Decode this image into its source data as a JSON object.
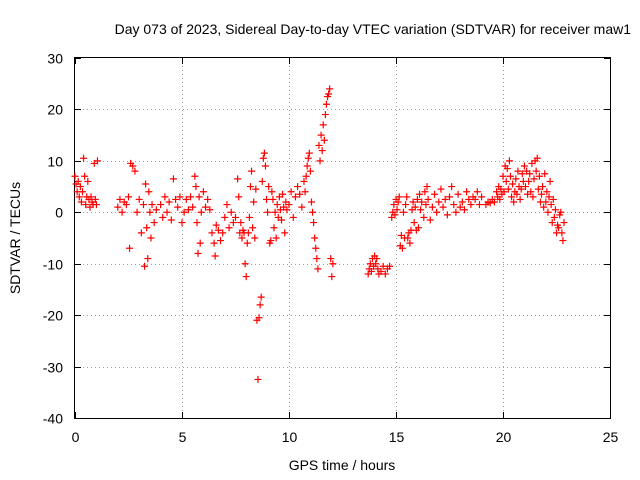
{
  "chart_data": {
    "type": "scatter",
    "title": "Day 073 of 2023, Sidereal Day-to-day VTEC variation (SDTVAR) for receiver maw1",
    "xlabel": "GPS time / hours",
    "ylabel": "SDTVAR / TECUs",
    "xlim": [
      0,
      25
    ],
    "ylim": [
      -40,
      30
    ],
    "x_ticks": [
      0,
      5,
      10,
      15,
      20,
      25
    ],
    "x_tick_labels": [
      "0",
      "5",
      "10",
      "15",
      "20",
      "25"
    ],
    "y_ticks": [
      -40,
      -30,
      -20,
      -10,
      0,
      10,
      20,
      30
    ],
    "y_tick_labels": [
      "-40",
      "-30",
      "-20",
      "-10",
      "0",
      "10",
      "20",
      "30"
    ],
    "grid": true,
    "marker": "+",
    "color": "#ff0000",
    "series": [
      {
        "name": "SDTVAR",
        "points": [
          [
            0.0,
            7
          ],
          [
            0.05,
            5.5
          ],
          [
            0.1,
            4
          ],
          [
            0.15,
            6
          ],
          [
            0.2,
            3
          ],
          [
            0.25,
            5
          ],
          [
            0.3,
            2
          ],
          [
            0.35,
            4
          ],
          [
            0.4,
            10.5
          ],
          [
            0.45,
            7
          ],
          [
            0.5,
            1.5
          ],
          [
            0.55,
            3
          ],
          [
            0.6,
            6
          ],
          [
            0.65,
            2.5
          ],
          [
            0.7,
            1
          ],
          [
            0.75,
            3
          ],
          [
            0.8,
            2
          ],
          [
            0.85,
            1.5
          ],
          [
            0.9,
            9.5
          ],
          [
            0.95,
            2.5
          ],
          [
            1.0,
            1.5
          ],
          [
            1.05,
            10
          ],
          [
            2.0,
            1
          ],
          [
            2.1,
            2.5
          ],
          [
            2.2,
            0
          ],
          [
            2.3,
            2
          ],
          [
            2.4,
            1.5
          ],
          [
            2.5,
            3
          ],
          [
            2.55,
            -7
          ],
          [
            2.6,
            9.5
          ],
          [
            2.7,
            9
          ],
          [
            2.8,
            8
          ],
          [
            2.9,
            0
          ],
          [
            3.0,
            2.5
          ],
          [
            3.1,
            -4
          ],
          [
            3.2,
            1.5
          ],
          [
            3.25,
            -10.5
          ],
          [
            3.3,
            5.5
          ],
          [
            3.35,
            -3
          ],
          [
            3.4,
            -9
          ],
          [
            3.45,
            4
          ],
          [
            3.5,
            0
          ],
          [
            3.55,
            -5
          ],
          [
            3.6,
            1.5
          ],
          [
            3.7,
            -2
          ],
          [
            3.8,
            0.5
          ],
          [
            4.0,
            1.5
          ],
          [
            4.1,
            -1
          ],
          [
            4.2,
            3
          ],
          [
            4.3,
            0
          ],
          [
            4.4,
            2
          ],
          [
            4.5,
            -1.5
          ],
          [
            4.6,
            6.5
          ],
          [
            4.7,
            2.5
          ],
          [
            4.8,
            1
          ],
          [
            4.9,
            3
          ],
          [
            5.0,
            -2
          ],
          [
            5.1,
            0
          ],
          [
            5.2,
            2.5
          ],
          [
            5.3,
            0.5
          ],
          [
            5.4,
            3
          ],
          [
            5.5,
            1
          ],
          [
            5.6,
            7
          ],
          [
            5.65,
            5
          ],
          [
            5.7,
            -2
          ],
          [
            5.75,
            -8
          ],
          [
            5.8,
            3
          ],
          [
            5.85,
            -6
          ],
          [
            5.9,
            0
          ],
          [
            6.0,
            4
          ],
          [
            6.1,
            1
          ],
          [
            6.2,
            2.5
          ],
          [
            6.3,
            0.5
          ],
          [
            6.4,
            -4
          ],
          [
            6.5,
            -6
          ],
          [
            6.55,
            -8.5
          ],
          [
            6.6,
            -2.5
          ],
          [
            6.7,
            -3.5
          ],
          [
            6.8,
            -5.5
          ],
          [
            6.9,
            -4
          ],
          [
            7.0,
            -1
          ],
          [
            7.1,
            1.5
          ],
          [
            7.2,
            -3
          ],
          [
            7.3,
            0
          ],
          [
            7.4,
            -2
          ],
          [
            7.5,
            -1
          ],
          [
            7.6,
            6.5
          ],
          [
            7.65,
            3
          ],
          [
            7.7,
            -4
          ],
          [
            7.75,
            -2
          ],
          [
            7.8,
            -5
          ],
          [
            7.85,
            -3.5
          ],
          [
            7.9,
            -4
          ],
          [
            7.95,
            -10
          ],
          [
            8.0,
            -12.5
          ],
          [
            8.05,
            -6
          ],
          [
            8.1,
            -4
          ],
          [
            8.15,
            -1
          ],
          [
            8.2,
            5
          ],
          [
            8.25,
            8
          ],
          [
            8.3,
            -3
          ],
          [
            8.35,
            2
          ],
          [
            8.4,
            -5
          ],
          [
            8.45,
            4.5
          ],
          [
            8.5,
            -21
          ],
          [
            8.55,
            -32.5
          ],
          [
            8.6,
            -20.5
          ],
          [
            8.65,
            -18
          ],
          [
            8.7,
            -16.5
          ],
          [
            8.75,
            6
          ],
          [
            8.8,
            10.5
          ],
          [
            8.85,
            11.5
          ],
          [
            8.9,
            9
          ],
          [
            8.95,
            2.5
          ],
          [
            9.0,
            0
          ],
          [
            9.05,
            5
          ],
          [
            9.1,
            -6
          ],
          [
            9.15,
            -5.5
          ],
          [
            9.2,
            4
          ],
          [
            9.25,
            2.5
          ],
          [
            9.3,
            -3
          ],
          [
            9.35,
            0
          ],
          [
            9.4,
            -5
          ],
          [
            9.45,
            1.5
          ],
          [
            9.5,
            -1
          ],
          [
            9.55,
            3
          ],
          [
            9.6,
            0.5
          ],
          [
            9.65,
            -1.5
          ],
          [
            9.7,
            3.5
          ],
          [
            9.75,
            1
          ],
          [
            9.8,
            -4
          ],
          [
            9.85,
            2
          ],
          [
            9.9,
            0.5
          ],
          [
            10.0,
            1.5
          ],
          [
            10.1,
            4
          ],
          [
            10.2,
            -1
          ],
          [
            10.3,
            3
          ],
          [
            10.4,
            5
          ],
          [
            10.5,
            3.5
          ],
          [
            10.6,
            1
          ],
          [
            10.7,
            6
          ],
          [
            10.75,
            4
          ],
          [
            10.8,
            7
          ],
          [
            10.85,
            9
          ],
          [
            10.9,
            10.5
          ],
          [
            10.95,
            11.5
          ],
          [
            11.0,
            8
          ],
          [
            11.05,
            2
          ],
          [
            11.1,
            0
          ],
          [
            11.15,
            -2
          ],
          [
            11.2,
            -5
          ],
          [
            11.25,
            -7
          ],
          [
            11.3,
            -9
          ],
          [
            11.35,
            -11
          ],
          [
            11.4,
            13
          ],
          [
            11.45,
            10
          ],
          [
            11.5,
            15
          ],
          [
            11.55,
            12
          ],
          [
            11.6,
            17
          ],
          [
            11.65,
            14
          ],
          [
            11.7,
            19
          ],
          [
            11.75,
            21
          ],
          [
            11.8,
            22.5
          ],
          [
            11.85,
            23
          ],
          [
            11.9,
            24
          ],
          [
            11.95,
            -9
          ],
          [
            12.0,
            -12.5
          ],
          [
            12.05,
            -10
          ],
          [
            13.7,
            -12
          ],
          [
            13.75,
            -11
          ],
          [
            13.8,
            -10
          ],
          [
            13.85,
            -11.5
          ],
          [
            13.9,
            -9
          ],
          [
            13.95,
            -10.5
          ],
          [
            14.0,
            -8.5
          ],
          [
            14.05,
            -10
          ],
          [
            14.1,
            -9
          ],
          [
            14.15,
            -11
          ],
          [
            14.2,
            -12
          ],
          [
            14.3,
            -11.5
          ],
          [
            14.4,
            -10.5
          ],
          [
            14.5,
            -12
          ],
          [
            14.6,
            -11
          ],
          [
            14.7,
            -10.5
          ],
          [
            14.8,
            -1
          ],
          [
            14.85,
            0
          ],
          [
            14.9,
            1.5
          ],
          [
            14.95,
            -0.5
          ],
          [
            15.0,
            2.5
          ],
          [
            15.05,
            0.5
          ],
          [
            15.1,
            2
          ],
          [
            15.15,
            3
          ],
          [
            15.2,
            -6.5
          ],
          [
            15.25,
            -4.5
          ],
          [
            15.3,
            -7
          ],
          [
            15.35,
            0
          ],
          [
            15.4,
            -5
          ],
          [
            15.45,
            1.5
          ],
          [
            15.5,
            3
          ],
          [
            15.55,
            -5
          ],
          [
            15.6,
            -4
          ],
          [
            15.65,
            -6
          ],
          [
            15.7,
            -3.5
          ],
          [
            15.75,
            0.5
          ],
          [
            15.8,
            2
          ],
          [
            15.85,
            -2
          ],
          [
            15.9,
            1
          ],
          [
            15.95,
            -3.5
          ],
          [
            16.0,
            2.5
          ],
          [
            16.05,
            -3
          ],
          [
            16.1,
            3.5
          ],
          [
            16.15,
            0.5
          ],
          [
            16.2,
            2
          ],
          [
            16.3,
            -1
          ],
          [
            16.35,
            4
          ],
          [
            16.4,
            1.5
          ],
          [
            16.45,
            5
          ],
          [
            16.5,
            2.5
          ],
          [
            16.6,
            -1.5
          ],
          [
            16.7,
            1
          ],
          [
            16.8,
            3.5
          ],
          [
            16.9,
            0
          ],
          [
            17.0,
            2
          ],
          [
            17.1,
            4.5
          ],
          [
            17.2,
            1
          ],
          [
            17.3,
            2.5
          ],
          [
            17.4,
            -0.5
          ],
          [
            17.5,
            3
          ],
          [
            17.6,
            5
          ],
          [
            17.7,
            1.5
          ],
          [
            17.8,
            0
          ],
          [
            17.9,
            3.5
          ],
          [
            18.0,
            1
          ],
          [
            18.1,
            2
          ],
          [
            18.2,
            0.5
          ],
          [
            18.3,
            4
          ],
          [
            18.4,
            2.5
          ],
          [
            18.5,
            1.5
          ],
          [
            18.6,
            3
          ],
          [
            18.7,
            2.5
          ],
          [
            18.8,
            4
          ],
          [
            18.9,
            1.5
          ],
          [
            19.0,
            3
          ],
          [
            19.2,
            1.5
          ],
          [
            19.3,
            2
          ],
          [
            19.4,
            1.8
          ],
          [
            19.5,
            2.5
          ],
          [
            19.6,
            2
          ],
          [
            19.7,
            4
          ],
          [
            19.75,
            3
          ],
          [
            19.8,
            5
          ],
          [
            19.85,
            2.5
          ],
          [
            19.9,
            4.5
          ],
          [
            19.95,
            3.5
          ],
          [
            20.0,
            7
          ],
          [
            20.05,
            4
          ],
          [
            20.1,
            9
          ],
          [
            20.15,
            6
          ],
          [
            20.2,
            8.5
          ],
          [
            20.25,
            4.5
          ],
          [
            20.3,
            10
          ],
          [
            20.35,
            7
          ],
          [
            20.4,
            3
          ],
          [
            20.45,
            5.5
          ],
          [
            20.5,
            2
          ],
          [
            20.55,
            4
          ],
          [
            20.6,
            6.5
          ],
          [
            20.65,
            3.5
          ],
          [
            20.7,
            8
          ],
          [
            20.75,
            5
          ],
          [
            20.8,
            2.5
          ],
          [
            20.85,
            4.5
          ],
          [
            20.9,
            7.5
          ],
          [
            20.95,
            6
          ],
          [
            21.0,
            9
          ],
          [
            21.05,
            5
          ],
          [
            21.1,
            8
          ],
          [
            21.15,
            3.5
          ],
          [
            21.2,
            6
          ],
          [
            21.25,
            7.5
          ],
          [
            21.3,
            4
          ],
          [
            21.35,
            9.5
          ],
          [
            21.4,
            3
          ],
          [
            21.45,
            6.5
          ],
          [
            21.5,
            10
          ],
          [
            21.55,
            8
          ],
          [
            21.6,
            10.5
          ],
          [
            21.65,
            4.5
          ],
          [
            21.7,
            7
          ],
          [
            21.75,
            2
          ],
          [
            21.8,
            3.5
          ],
          [
            21.85,
            5
          ],
          [
            21.9,
            1
          ],
          [
            21.95,
            7.5
          ],
          [
            22.0,
            2
          ],
          [
            22.05,
            4
          ],
          [
            22.1,
            0
          ],
          [
            22.15,
            3
          ],
          [
            22.2,
            6
          ],
          [
            22.25,
            1.5
          ],
          [
            22.3,
            -2
          ],
          [
            22.35,
            2.5
          ],
          [
            22.4,
            -1
          ],
          [
            22.45,
            0.5
          ],
          [
            22.5,
            -4
          ],
          [
            22.55,
            -2.5
          ],
          [
            22.6,
            -3
          ],
          [
            22.65,
            -0.5
          ],
          [
            22.7,
            0
          ],
          [
            22.75,
            -4
          ],
          [
            22.8,
            -5.5
          ],
          [
            22.85,
            -2
          ]
        ]
      }
    ]
  }
}
